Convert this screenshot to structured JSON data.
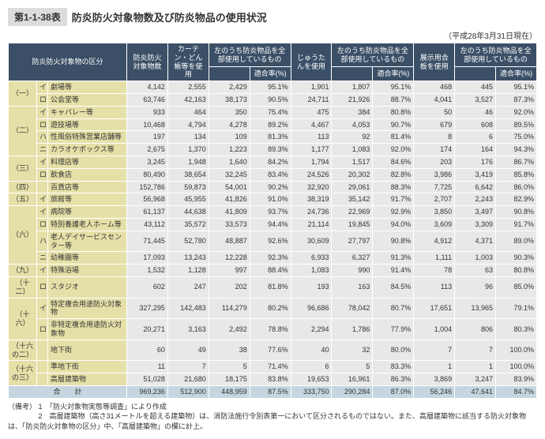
{
  "header": {
    "tableLabel": "第1-1-38表",
    "title": "防炎防火対象物数及び防炎物品の使用状況",
    "dateNote": "（平成28年3月31日現在）"
  },
  "columns": {
    "c1": "防炎防火対象物の区分",
    "c2": "防炎防火対象物数",
    "c3": "カーテン・どん帳等を使用",
    "c4a": "左のうち防炎物品を全部使用しているもの",
    "c4b": "適合率(%)",
    "c5": "じゅうたんを使用",
    "c6a": "左のうち防炎物品を全部使用しているもの",
    "c6b": "適合率(%)",
    "c7": "展示用合板を使用",
    "c8a": "左のうち防炎物品を全部使用しているもの",
    "c8b": "適合率(%)"
  },
  "rows": [
    {
      "g": "（一）",
      "s": "イ",
      "n": "劇場等",
      "v": [
        "4,142",
        "2,555",
        "2,429",
        "95.1%",
        "1,901",
        "1,807",
        "95.1%",
        "468",
        "445",
        "95.1%"
      ]
    },
    {
      "g": "",
      "s": "ロ",
      "n": "公会堂等",
      "v": [
        "63,746",
        "42,163",
        "38,173",
        "90.5%",
        "24,711",
        "21,926",
        "88.7%",
        "4,041",
        "3,527",
        "87.3%"
      ]
    },
    {
      "g": "（二）",
      "s": "イ",
      "n": "キャバレー等",
      "v": [
        "933",
        "464",
        "350",
        "75.4%",
        "475",
        "384",
        "80.8%",
        "50",
        "46",
        "92.0%"
      ]
    },
    {
      "g": "",
      "s": "ロ",
      "n": "遊技場等",
      "v": [
        "10,468",
        "4,794",
        "4,278",
        "89.2%",
        "4,467",
        "4,053",
        "90.7%",
        "679",
        "608",
        "89.5%"
      ]
    },
    {
      "g": "",
      "s": "ハ",
      "n": "性風俗特殊営業店舗等",
      "v": [
        "197",
        "134",
        "109",
        "81.3%",
        "113",
        "92",
        "81.4%",
        "8",
        "6",
        "75.0%"
      ]
    },
    {
      "g": "",
      "s": "ニ",
      "n": "カラオケボックス等",
      "v": [
        "2,675",
        "1,370",
        "1,223",
        "89.3%",
        "1,177",
        "1,083",
        "92.0%",
        "174",
        "164",
        "94.3%"
      ]
    },
    {
      "g": "（三）",
      "s": "イ",
      "n": "料理店等",
      "v": [
        "3,245",
        "1,948",
        "1,640",
        "84.2%",
        "1,794",
        "1,517",
        "84.6%",
        "203",
        "176",
        "86.7%"
      ]
    },
    {
      "g": "",
      "s": "ロ",
      "n": "飲食店",
      "v": [
        "80,490",
        "38,654",
        "32,245",
        "83.4%",
        "24,526",
        "20,302",
        "82.8%",
        "3,986",
        "3,419",
        "85.8%"
      ]
    },
    {
      "g": "（四）",
      "s": "",
      "n": "百貨店等",
      "v": [
        "152,786",
        "59,873",
        "54,001",
        "90.2%",
        "32,920",
        "29,061",
        "88.3%",
        "7,725",
        "6,642",
        "86.0%"
      ]
    },
    {
      "g": "（五）",
      "s": "イ",
      "n": "旅館等",
      "v": [
        "56,968",
        "45,955",
        "41,826",
        "91.0%",
        "38,319",
        "35,142",
        "91.7%",
        "2,707",
        "2,243",
        "82.9%"
      ]
    },
    {
      "g": "（六）",
      "s": "イ",
      "n": "病院等",
      "v": [
        "61,137",
        "44,638",
        "41,809",
        "93.7%",
        "24,736",
        "22,969",
        "92.9%",
        "3,850",
        "3,497",
        "90.8%"
      ]
    },
    {
      "g": "",
      "s": "ロ",
      "n": "特別養護老人ホーム等",
      "v": [
        "43,112",
        "35,572",
        "33,573",
        "94.4%",
        "21,114",
        "19,845",
        "94.0%",
        "3,609",
        "3,309",
        "91.7%"
      ]
    },
    {
      "g": "",
      "s": "ハ",
      "n": "老人デイサービスセンター等",
      "v": [
        "71,445",
        "52,780",
        "48,887",
        "92.6%",
        "30,609",
        "27,797",
        "90.8%",
        "4,912",
        "4,371",
        "89.0%"
      ]
    },
    {
      "g": "",
      "s": "ニ",
      "n": "幼稚園等",
      "v": [
        "17,093",
        "13,243",
        "12,228",
        "92.3%",
        "6,933",
        "6,327",
        "91.3%",
        "1,111",
        "1,003",
        "90.3%"
      ]
    },
    {
      "g": "（九）",
      "s": "イ",
      "n": "特殊浴場",
      "v": [
        "1,532",
        "1,128",
        "997",
        "88.4%",
        "1,083",
        "990",
        "91.4%",
        "78",
        "63",
        "80.8%"
      ]
    },
    {
      "g": "（十二）",
      "s": "ロ",
      "n": "スタジオ",
      "v": [
        "602",
        "247",
        "202",
        "81.8%",
        "193",
        "163",
        "84.5%",
        "113",
        "96",
        "85.0%"
      ]
    },
    {
      "g": "（十六）",
      "s": "イ",
      "n": "特定複合用途防火対象物",
      "v": [
        "327,295",
        "142,483",
        "114,279",
        "80.2%",
        "96,686",
        "78,042",
        "80.7%",
        "17,651",
        "13,965",
        "79.1%"
      ]
    },
    {
      "g": "",
      "s": "ロ",
      "n": "非特定複合用途防火対象物",
      "v": [
        "20,271",
        "3,163",
        "2,492",
        "78.8%",
        "2,294",
        "1,786",
        "77.9%",
        "1,004",
        "806",
        "80.3%"
      ]
    },
    {
      "g": "（十六の二）",
      "s": "",
      "n": "地下街",
      "v": [
        "60",
        "49",
        "38",
        "77.6%",
        "40",
        "32",
        "80.0%",
        "7",
        "7",
        "100.0%"
      ]
    },
    {
      "g": "（十六の三）",
      "s": "",
      "n": "準地下街",
      "v": [
        "11",
        "7",
        "5",
        "71.4%",
        "6",
        "5",
        "83.3%",
        "1",
        "1",
        "100.0%"
      ]
    },
    {
      "g": "",
      "s": "",
      "n": "高層建築物",
      "v": [
        "51,028",
        "21,680",
        "18,175",
        "83.8%",
        "19,653",
        "16,961",
        "86.3%",
        "3,869",
        "3,247",
        "83.9%"
      ]
    }
  ],
  "total": {
    "n": "合　　計",
    "v": [
      "969,236",
      "512,900",
      "448,959",
      "87.5%",
      "333,750",
      "290,284",
      "87.0%",
      "56,246",
      "47,641",
      "84.7%"
    ]
  },
  "notes": {
    "label": "（備考）",
    "n1": "1　「防火対象物実態等調査」により作成",
    "n2": "2　高層建築物（高さ31メートルを超える建築物）は、消防法施行令別表第一において区分されるものではない。また、高層建築物に該当する防火対象物は、「防炎防火対象物の区分」中、「高層建築物」の欄に計上。"
  }
}
